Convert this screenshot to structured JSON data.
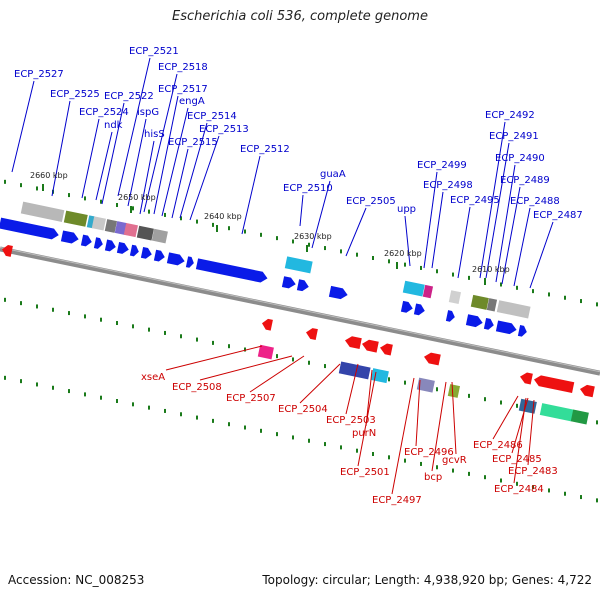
{
  "header": {
    "title": "Escherichia coli 536, complete genome"
  },
  "footer": {
    "accession": "Accession: NC_008253",
    "topology": "Topology: circular; Length: 4,938,920 bp; Genes: 4,722"
  },
  "colors": {
    "forward_label": "#0000cc",
    "reverse_label": "#cc0000",
    "forward_gene": "#0a1be8",
    "reverse_gene": "#ee1111",
    "backbone": "#8c8c8c",
    "tick": "#1a7a1a"
  },
  "scale_labels": [
    "2660 kbp",
    "2650 kbp",
    "2640 kbp",
    "2630 kbp",
    "2620 kbp",
    "2610 kbp"
  ],
  "forward_genes": [
    "ECP_2527",
    "ECP_2525",
    "ECP_2524",
    "ndk",
    "ECP_2522",
    "ECP_2521",
    "ispG",
    "ECP_2518",
    "hisS",
    "ECP_2517",
    "engA",
    "ECP_2515",
    "ECP_2514",
    "ECP_2513",
    "ECP_2512",
    "ECP_2510",
    "guaA",
    "ECP_2505",
    "upp",
    "ECP_2499",
    "ECP_2498",
    "ECP_2495",
    "ECP_2492",
    "ECP_2491",
    "ECP_2490",
    "ECP_2489",
    "ECP_2488",
    "ECP_2487"
  ],
  "reverse_genes": [
    "xseA",
    "ECP_2508",
    "ECP_2507",
    "ECP_2504",
    "ECP_2503",
    "purN",
    "ECP_2501",
    "ECP_2496",
    "ECP_2497",
    "gcvR",
    "bcp",
    "ECP_2486",
    "ECP_2485",
    "ECP_2483",
    "ECP_2484"
  ]
}
